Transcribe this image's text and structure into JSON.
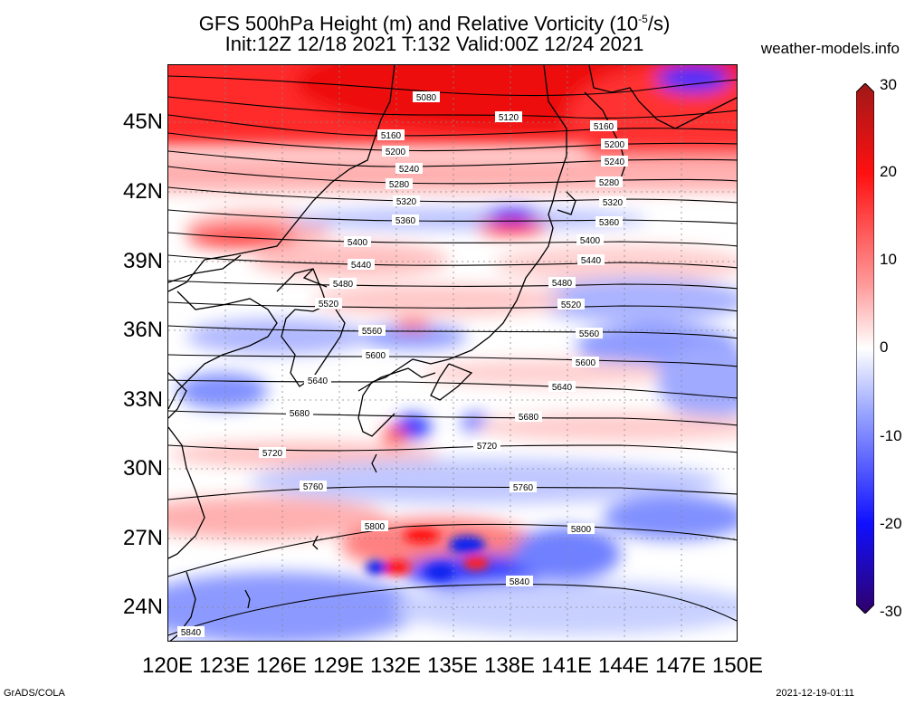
{
  "title_line1": "GFS 500hPa Height (m) and Relative Vorticity (10",
  "title_unit_sup": "-5",
  "title_unit_tail": "/s)",
  "title_line2": "Init:12Z 12/18 2021 T:132 Valid:00Z 12/24 2021",
  "site": "weather-models.info",
  "footer_left": "GrADS/COLA",
  "footer_right": "2021-12-19-01:11",
  "lat_labels": [
    "45N",
    "42N",
    "39N",
    "36N",
    "33N",
    "30N",
    "27N",
    "24N"
  ],
  "lon_labels": [
    "120E",
    "123E",
    "126E",
    "129E",
    "132E",
    "135E",
    "138E",
    "141E",
    "144E",
    "147E",
    "150E"
  ],
  "colorbar": {
    "ticks": [
      "30",
      "20",
      "10",
      "0",
      "-10",
      "-20",
      "-30"
    ],
    "colors": {
      "max": "#a01818",
      "high": "#ff1010",
      "mid_pos": "#ff9a9a",
      "zero": "#ffffff",
      "mid_neg": "#9aa6ff",
      "low": "#1010ff",
      "min": "#30006a"
    }
  },
  "contour_labels": [
    "5080",
    "5120",
    "5160",
    "5200",
    "5240",
    "5280",
    "5320",
    "5360",
    "5400",
    "5440",
    "5480",
    "5520",
    "5560",
    "5600",
    "5640",
    "5680",
    "5720",
    "5760",
    "5800",
    "5840"
  ],
  "map_extent": {
    "lon": [
      120,
      150
    ],
    "lat": [
      22.5,
      47.5
    ]
  }
}
